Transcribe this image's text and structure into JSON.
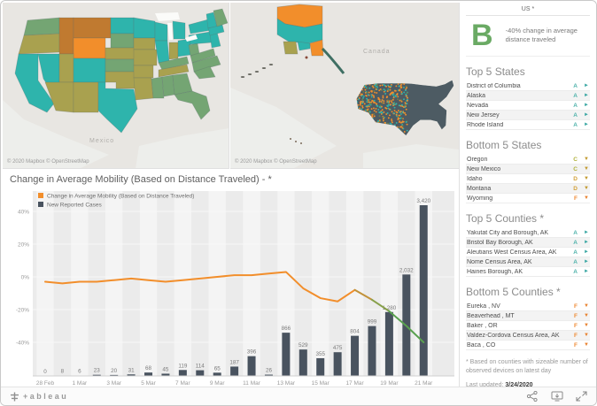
{
  "maps": {
    "palette": {
      "teal": "#2eb4ac",
      "green": "#74a573",
      "olive": "#a9a14f",
      "orange": "#f28e2b",
      "dark_orange": "#c07a30",
      "slate": "#4d5b63",
      "land": "#e8e6e2",
      "ocean": "#edeeeb"
    },
    "state_map": {
      "attribution": "© 2020 Mapbox © OpenStreetMap",
      "label_mexico": "Mexico",
      "states": [
        {
          "id": "WA",
          "c": "green"
        },
        {
          "id": "OR",
          "c": "olive"
        },
        {
          "id": "CA",
          "c": "teal"
        },
        {
          "id": "NV",
          "c": "teal"
        },
        {
          "id": "ID",
          "c": "dark_orange"
        },
        {
          "id": "MT",
          "c": "dark_orange"
        },
        {
          "id": "WY",
          "c": "orange"
        },
        {
          "id": "UT",
          "c": "olive"
        },
        {
          "id": "CO",
          "c": "teal"
        },
        {
          "id": "AZ",
          "c": "olive"
        },
        {
          "id": "NM",
          "c": "olive"
        },
        {
          "id": "TX",
          "c": "teal"
        },
        {
          "id": "ND",
          "c": "teal"
        },
        {
          "id": "SD",
          "c": "green"
        },
        {
          "id": "NE",
          "c": "olive"
        },
        {
          "id": "KS",
          "c": "green"
        },
        {
          "id": "OK",
          "c": "olive"
        },
        {
          "id": "MN",
          "c": "teal"
        },
        {
          "id": "IA",
          "c": "olive"
        },
        {
          "id": "MO",
          "c": "olive"
        },
        {
          "id": "AR",
          "c": "olive"
        },
        {
          "id": "LA",
          "c": "olive"
        },
        {
          "id": "WI",
          "c": "teal"
        },
        {
          "id": "IL",
          "c": "teal"
        },
        {
          "id": "MI",
          "c": "teal"
        },
        {
          "id": "IN",
          "c": "olive"
        },
        {
          "id": "OH",
          "c": "teal"
        },
        {
          "id": "KY",
          "c": "green"
        },
        {
          "id": "TN",
          "c": "olive"
        },
        {
          "id": "MS",
          "c": "green"
        },
        {
          "id": "AL",
          "c": "green"
        },
        {
          "id": "GA",
          "c": "green"
        },
        {
          "id": "FL",
          "c": "green"
        },
        {
          "id": "WV",
          "c": "green"
        },
        {
          "id": "VA",
          "c": "green"
        },
        {
          "id": "NC",
          "c": "green"
        },
        {
          "id": "SC",
          "c": "green"
        },
        {
          "id": "PA",
          "c": "teal"
        },
        {
          "id": "NY",
          "c": "teal"
        },
        {
          "id": "NJ",
          "c": "teal"
        },
        {
          "id": "VT",
          "c": "teal"
        },
        {
          "id": "MA",
          "c": "teal"
        },
        {
          "id": "ME",
          "c": "green"
        }
      ]
    },
    "county_map": {
      "attribution": "© 2020 Mapbox © OpenStreetMap",
      "label_canada": "Canada"
    }
  },
  "sidebar": {
    "header": "US *",
    "ban": {
      "grade": "B",
      "grade_color": "#6aaa64",
      "text": "-40% change in average distance traveled"
    },
    "grade_colors": {
      "A": "#4db2aa",
      "B": "#6aaa64",
      "C": "#afb038",
      "D": "#d2a038",
      "F": "#ef8b36"
    },
    "arrow_colors": {
      "flat": "#3aa7a3",
      "down_mid": "#c2992e",
      "down_bad": "#e8822f"
    },
    "sections": [
      {
        "title": "Top 5 States",
        "rows": [
          {
            "name": "District of Columbia",
            "grade": "A",
            "trend": "flat"
          },
          {
            "name": "Alaska",
            "grade": "A",
            "trend": "flat"
          },
          {
            "name": "Nevada",
            "grade": "A",
            "trend": "flat"
          },
          {
            "name": "New Jersey",
            "grade": "A",
            "trend": "flat"
          },
          {
            "name": "Rhode Island",
            "grade": "A",
            "trend": "flat"
          }
        ]
      },
      {
        "title": "Bottom 5 States",
        "rows": [
          {
            "name": "Oregon",
            "grade": "C",
            "trend": "down_mid"
          },
          {
            "name": "New Mexico",
            "grade": "C",
            "trend": "down_mid"
          },
          {
            "name": "Idaho",
            "grade": "D",
            "trend": "down_mid"
          },
          {
            "name": "Montana",
            "grade": "D",
            "trend": "down_mid"
          },
          {
            "name": "Wyoming",
            "grade": "F",
            "trend": "down_bad"
          }
        ]
      },
      {
        "title": "Top 5 Counties *",
        "rows": [
          {
            "name": "Yakutat City and Borough, AK",
            "grade": "A",
            "trend": "flat"
          },
          {
            "name": "Bristol Bay Borough, AK",
            "grade": "A",
            "trend": "flat"
          },
          {
            "name": "Aleutians West Census Area, AK",
            "grade": "A",
            "trend": "flat"
          },
          {
            "name": "Nome Census Area, AK",
            "grade": "A",
            "trend": "flat"
          },
          {
            "name": "Haines Borough, AK",
            "grade": "A",
            "trend": "flat"
          }
        ]
      },
      {
        "title": "Bottom 5 Counties *",
        "rows": [
          {
            "name": "Eureka , NV",
            "grade": "F",
            "trend": "down_bad"
          },
          {
            "name": "Beaverhead , MT",
            "grade": "F",
            "trend": "down_bad"
          },
          {
            "name": "Baker , OR",
            "grade": "F",
            "trend": "down_bad"
          },
          {
            "name": "Valdez-Cordova Census Area, AK",
            "grade": "F",
            "trend": "down_bad"
          },
          {
            "name": "Baca , CO",
            "grade": "F",
            "trend": "down_bad"
          }
        ]
      }
    ],
    "footnote": "* Based on counties with sizeable number of observed devices on latest day",
    "last_updated_label": "Last updated:",
    "last_updated_value": "3/24/2020"
  },
  "chart_data": {
    "type": "combo",
    "title": "Change in Average Mobility (Based on Distance Traveled) - *",
    "x": [
      "28 Feb",
      "29 Feb",
      "1 Mar",
      "2 Mar",
      "3 Mar",
      "4 Mar",
      "5 Mar",
      "6 Mar",
      "7 Mar",
      "8 Mar",
      "9 Mar",
      "10 Mar",
      "11 Mar",
      "12 Mar",
      "13 Mar",
      "14 Mar",
      "15 Mar",
      "16 Mar",
      "17 Mar",
      "18 Mar",
      "19 Mar",
      "20 Mar",
      "21 Mar"
    ],
    "x_ticks": [
      "28 Feb",
      "1 Mar",
      "3 Mar",
      "5 Mar",
      "7 Mar",
      "9 Mar",
      "11 Mar",
      "13 Mar",
      "15 Mar",
      "17 Mar",
      "19 Mar",
      "21 Mar"
    ],
    "y_axis": {
      "ticks": [
        40,
        20,
        0,
        -20,
        -40
      ],
      "unit": "%"
    },
    "series": [
      {
        "name": "Change in Average Mobility (Based on Distance Traveled)",
        "type": "line",
        "color": "#f28e2b",
        "end_color": "#59a14f",
        "values": [
          -3,
          -4,
          -3,
          -3,
          -2,
          -1,
          -2,
          -3,
          -2,
          -1,
          0,
          1,
          1,
          2,
          3,
          -7,
          -13,
          -15,
          -8,
          -14,
          -21,
          -30,
          -40
        ]
      },
      {
        "name": "New Reported Cases",
        "type": "bar",
        "color": "#49535f",
        "values": [
          0,
          8,
          6,
          23,
          20,
          31,
          68,
          45,
          119,
          114,
          65,
          187,
          396,
          26,
          866,
          529,
          355,
          475,
          804,
          999,
          1280,
          2032,
          3420
        ]
      }
    ],
    "legend_position": "top-left"
  },
  "toolbar": {
    "logo_text": "+ableau",
    "icons": [
      {
        "name": "share"
      },
      {
        "name": "download"
      },
      {
        "name": "fullscreen"
      }
    ]
  }
}
